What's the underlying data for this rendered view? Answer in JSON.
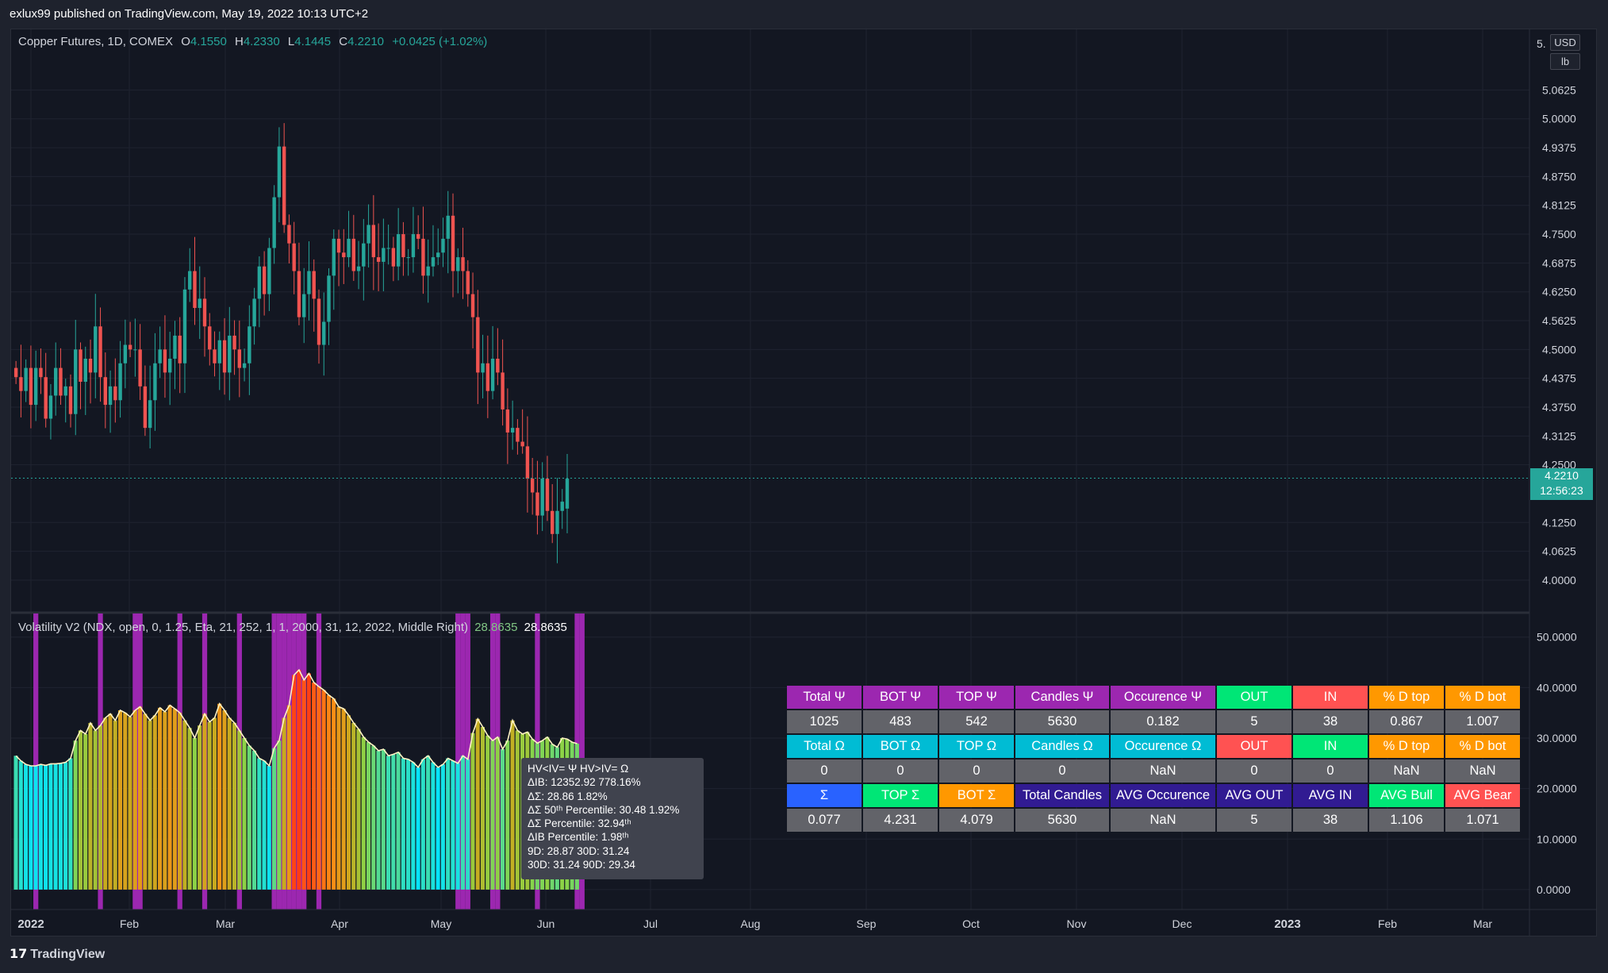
{
  "header": {
    "published": "exlux99 published on TradingView.com, May 19, 2022 10:13 UTC+2"
  },
  "footer": {
    "logo": "𝟭𝟳",
    "brand": "TradingView"
  },
  "main_legend": {
    "symbol": "Copper Futures, 1D, COMEX",
    "o_label": "O",
    "o_value": "4.1550",
    "h_label": "H",
    "h_value": "4.2330",
    "l_label": "L",
    "l_value": "4.1445",
    "c_label": "C",
    "c_value": "4.2210",
    "change": "+0.0425 (+1.02%)"
  },
  "indicator_legend": {
    "name": "Volatility V2 (NDX, open, 0, 1.25, Eta, 21, 252, 1, 1, 2000, 31, 12, 2022, Middle Right)",
    "value1": "28.8635",
    "value2": "28.8635"
  },
  "price_tag": {
    "price": "4.2210",
    "countdown": "12:56:23"
  },
  "unit_badges": {
    "currency": "USD",
    "unit": "lb",
    "partial_label": "5."
  },
  "tooltip": {
    "lines": [
      "HV<IV= Ψ  HV>IV= Ω",
      "ΔIB: 12352.92  778.16%",
      "ΔΣ: 28.86  1.82%",
      "ΔΣ 50ᵗʰ Percentile: 30.48  1.92%",
      "ΔΣ Percentile: 32.94ᵗʰ",
      "ΔIB Percentile: 1.98ᵗʰ",
      "9D: 28.87  30D: 31.24",
      "30D: 31.24  90D: 29.34"
    ]
  },
  "table": {
    "rows": [
      [
        {
          "t": "Total Ψ",
          "bg": "#9c27b0"
        },
        {
          "t": "BOT Ψ",
          "bg": "#9c27b0"
        },
        {
          "t": "TOP Ψ",
          "bg": "#9c27b0"
        },
        {
          "t": "Candles Ψ",
          "bg": "#9c27b0"
        },
        {
          "t": "Occurence Ψ",
          "bg": "#9c27b0"
        },
        {
          "t": "OUT",
          "bg": "#00e676"
        },
        {
          "t": "IN",
          "bg": "#ff5252"
        },
        {
          "t": "% D top",
          "bg": "#ff9800"
        },
        {
          "t": "% D bot",
          "bg": "#ff9800"
        }
      ],
      [
        {
          "t": "1025"
        },
        {
          "t": "483"
        },
        {
          "t": "542"
        },
        {
          "t": "5630"
        },
        {
          "t": "0.182"
        },
        {
          "t": "5"
        },
        {
          "t": "38"
        },
        {
          "t": "0.867"
        },
        {
          "t": "1.007"
        }
      ],
      [
        {
          "t": "Total Ω",
          "bg": "#00bcd4"
        },
        {
          "t": "BOT Ω",
          "bg": "#00bcd4"
        },
        {
          "t": "TOP Ω",
          "bg": "#00bcd4"
        },
        {
          "t": "Candles Ω",
          "bg": "#00bcd4"
        },
        {
          "t": "Occurence Ω",
          "bg": "#00bcd4"
        },
        {
          "t": "OUT",
          "bg": "#ff5252"
        },
        {
          "t": "IN",
          "bg": "#00e676"
        },
        {
          "t": "% D top",
          "bg": "#ff9800"
        },
        {
          "t": "% D bot",
          "bg": "#ff9800"
        }
      ],
      [
        {
          "t": "0"
        },
        {
          "t": "0"
        },
        {
          "t": "0"
        },
        {
          "t": "0"
        },
        {
          "t": "NaN"
        },
        {
          "t": "0"
        },
        {
          "t": "0"
        },
        {
          "t": "NaN"
        },
        {
          "t": "NaN"
        }
      ],
      [
        {
          "t": "Σ",
          "bg": "#2962ff"
        },
        {
          "t": "TOP Σ",
          "bg": "#00e676"
        },
        {
          "t": "BOT Σ",
          "bg": "#ff9800"
        },
        {
          "t": "Total Candles",
          "bg": "#311b92"
        },
        {
          "t": "AVG Occurence",
          "bg": "#311b92"
        },
        {
          "t": "AVG OUT",
          "bg": "#311b92"
        },
        {
          "t": "AVG IN",
          "bg": "#311b92"
        },
        {
          "t": "AVG Bull",
          "bg": "#00e676"
        },
        {
          "t": "AVG Bear",
          "bg": "#ff5252"
        }
      ],
      [
        {
          "t": "0.077"
        },
        {
          "t": "4.231"
        },
        {
          "t": "4.079"
        },
        {
          "t": "5630"
        },
        {
          "t": "NaN"
        },
        {
          "t": "5"
        },
        {
          "t": "38"
        },
        {
          "t": "1.106"
        },
        {
          "t": "1.071"
        }
      ]
    ]
  },
  "chart_data": [
    {
      "type": "candlestick",
      "title": "Copper Futures, 1D, COMEX",
      "x_axis_labels": [
        "2022",
        "Feb",
        "Mar",
        "Apr",
        "May",
        "Jun",
        "Jul",
        "Aug",
        "Sep",
        "Oct",
        "Nov",
        "Dec",
        "2023",
        "Feb",
        "Mar"
      ],
      "y_tick_labels": [
        "5.0625",
        "5.0000",
        "4.9375",
        "4.8750",
        "4.8125",
        "4.7500",
        "4.6875",
        "4.6250",
        "4.5625",
        "4.5000",
        "4.4375",
        "4.3750",
        "4.3125",
        "4.2500",
        "4.1250",
        "4.0625",
        "4.0000"
      ],
      "ylim": [
        3.95,
        5.12
      ],
      "last_price": 4.221,
      "colors": {
        "up": "#26a69a",
        "down": "#ef5350"
      },
      "series": [
        {
          "name": "close",
          "values": [
            4.44,
            4.41,
            4.46,
            4.38,
            4.46,
            4.44,
            4.35,
            4.4,
            4.46,
            4.4,
            4.42,
            4.36,
            4.5,
            4.43,
            4.48,
            4.45,
            4.55,
            4.44,
            4.38,
            4.42,
            4.39,
            4.47,
            4.51,
            4.5,
            4.5,
            4.42,
            4.33,
            4.39,
            4.47,
            4.5,
            4.45,
            4.48,
            4.53,
            4.47,
            4.63,
            4.67,
            4.59,
            4.61,
            4.55,
            4.5,
            4.47,
            4.52,
            4.45,
            4.53,
            4.5,
            4.46,
            4.47,
            4.55,
            4.61,
            4.68,
            4.62,
            4.72,
            4.83,
            4.94,
            4.77,
            4.73,
            4.67,
            4.57,
            4.62,
            4.67,
            4.61,
            4.51,
            4.56,
            4.66,
            4.74,
            4.71,
            4.7,
            4.74,
            4.67,
            4.68,
            4.73,
            4.77,
            4.7,
            4.69,
            4.72,
            4.72,
            4.68,
            4.75,
            4.7,
            4.7,
            4.75,
            4.74,
            4.66,
            4.68,
            4.7,
            4.71,
            4.74,
            4.79,
            4.67,
            4.7,
            4.67,
            4.62,
            4.57,
            4.45,
            4.47,
            4.41,
            4.48,
            4.45,
            4.37,
            4.32,
            4.33,
            4.3,
            4.29,
            4.22,
            4.19,
            4.14,
            4.22,
            4.15,
            4.1,
            4.15,
            4.17,
            4.22
          ]
        }
      ]
    },
    {
      "type": "area",
      "title": "Volatility V2 (NDX, open, 0, 1.25, Eta, 21, 252, 1, 1, 2000, 31, 12, 2022, Middle Right)",
      "y_tick_labels": [
        "50.0000",
        "40.0000",
        "30.0000",
        "20.0000",
        "10.0000",
        "0.0000"
      ],
      "ylim": [
        -3,
        52
      ],
      "last_value": 28.8635,
      "series": [
        {
          "name": "volatility",
          "values": [
            26.5,
            25.5,
            24.8,
            24.5,
            24.5,
            24.8,
            24.6,
            24.9,
            24.9,
            25.0,
            25.2,
            26.0,
            29.5,
            31.5,
            30.8,
            33.0,
            31.5,
            32.5,
            34.0,
            34.8,
            33.5,
            35.5,
            35.0,
            34.2,
            35.5,
            36.2,
            34.8,
            33.5,
            34.5,
            36.0,
            35.2,
            36.5,
            35.8,
            35.0,
            33.5,
            32.0,
            30.0,
            32.5,
            34.8,
            33.2,
            34.0,
            36.8,
            35.5,
            34.0,
            33.0,
            31.5,
            30.0,
            28.5,
            27.5,
            26.0,
            25.5,
            24.5,
            28.0,
            29.5,
            34.0,
            36.5,
            42.5,
            43.5,
            41.5,
            42.8,
            41.0,
            40.2,
            39.5,
            38.5,
            37.8,
            36.2,
            35.8,
            34.5,
            33.0,
            31.8,
            30.2,
            29.2,
            28.5,
            27.5,
            27.8,
            26.5,
            26.8,
            27.2,
            26.0,
            25.8,
            25.2,
            24.2,
            25.8,
            26.5,
            25.2,
            24.2,
            24.8,
            26.0,
            25.5,
            25.0,
            26.5,
            25.8,
            31.0,
            33.8,
            32.2,
            30.5,
            29.5,
            30.2,
            27.8,
            29.5,
            33.5,
            31.5,
            30.8,
            31.2,
            29.8,
            29.0,
            29.5,
            30.2,
            28.8,
            28.2,
            30.0,
            29.8,
            29.2,
            28.9
          ]
        }
      ],
      "highlight_bar_indices": [
        4,
        17,
        24,
        25,
        33,
        38,
        45,
        52,
        53,
        54,
        55,
        56,
        57,
        58,
        61,
        89,
        90,
        91,
        96,
        97,
        105,
        113,
        114
      ]
    }
  ]
}
